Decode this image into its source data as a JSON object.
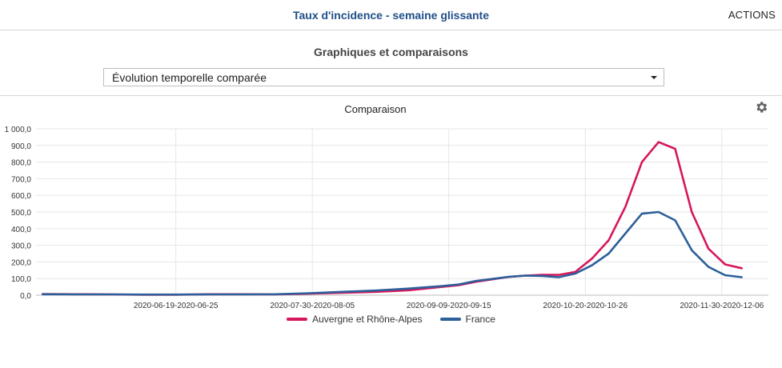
{
  "header": {
    "title": "Taux d'incidence - semaine glissante",
    "actions_label": "ACTIONS"
  },
  "section": {
    "title": "Graphiques et comparaisons"
  },
  "selector": {
    "selected": "Évolution temporelle comparée"
  },
  "icons": {
    "caret": "chevron-down-icon",
    "settings": "gear-icon"
  },
  "chart_data": {
    "type": "line",
    "title": "Comparaison",
    "xlabel": "",
    "ylabel": "",
    "ylim": [
      0,
      1000
    ],
    "yticks": [
      "0,0",
      "100,0",
      "200,0",
      "300,0",
      "400,0",
      "500,0",
      "600,0",
      "700,0",
      "800,0",
      "900,0",
      "1 000,0"
    ],
    "xtick_labels": [
      "2020-06-19-2020-06-25",
      "2020-07-30-2020-08-05",
      "2020-09-09-2020-09-15",
      "2020-10-20-2020-10-26",
      "2020-11-30-2020-12-06"
    ],
    "xtick_positions": [
      40,
      81,
      122,
      163,
      204
    ],
    "xlim": [
      -2,
      218
    ],
    "grid": true,
    "legend_position": "bottom",
    "x": [
      0,
      10,
      20,
      30,
      40,
      50,
      60,
      70,
      80,
      90,
      100,
      110,
      120,
      125,
      130,
      140,
      145,
      150,
      155,
      160,
      165,
      170,
      175,
      180,
      185,
      190,
      195,
      200,
      205,
      210
    ],
    "series": [
      {
        "name": "Auvergne et Rhône-Alpes",
        "color": "#d5175e",
        "values": [
          7,
          6,
          5,
          3,
          3,
          6,
          6,
          5,
          9,
          15,
          20,
          30,
          50,
          60,
          80,
          110,
          118,
          122,
          122,
          140,
          220,
          330,
          530,
          800,
          920,
          880,
          500,
          280,
          185,
          162
        ]
      },
      {
        "name": "France",
        "color": "#2d5f9a",
        "values": [
          6,
          5,
          5,
          4,
          4,
          5,
          5,
          6,
          12,
          20,
          28,
          40,
          55,
          65,
          85,
          110,
          118,
          116,
          108,
          130,
          180,
          250,
          370,
          490,
          500,
          450,
          270,
          170,
          120,
          108
        ]
      }
    ]
  }
}
